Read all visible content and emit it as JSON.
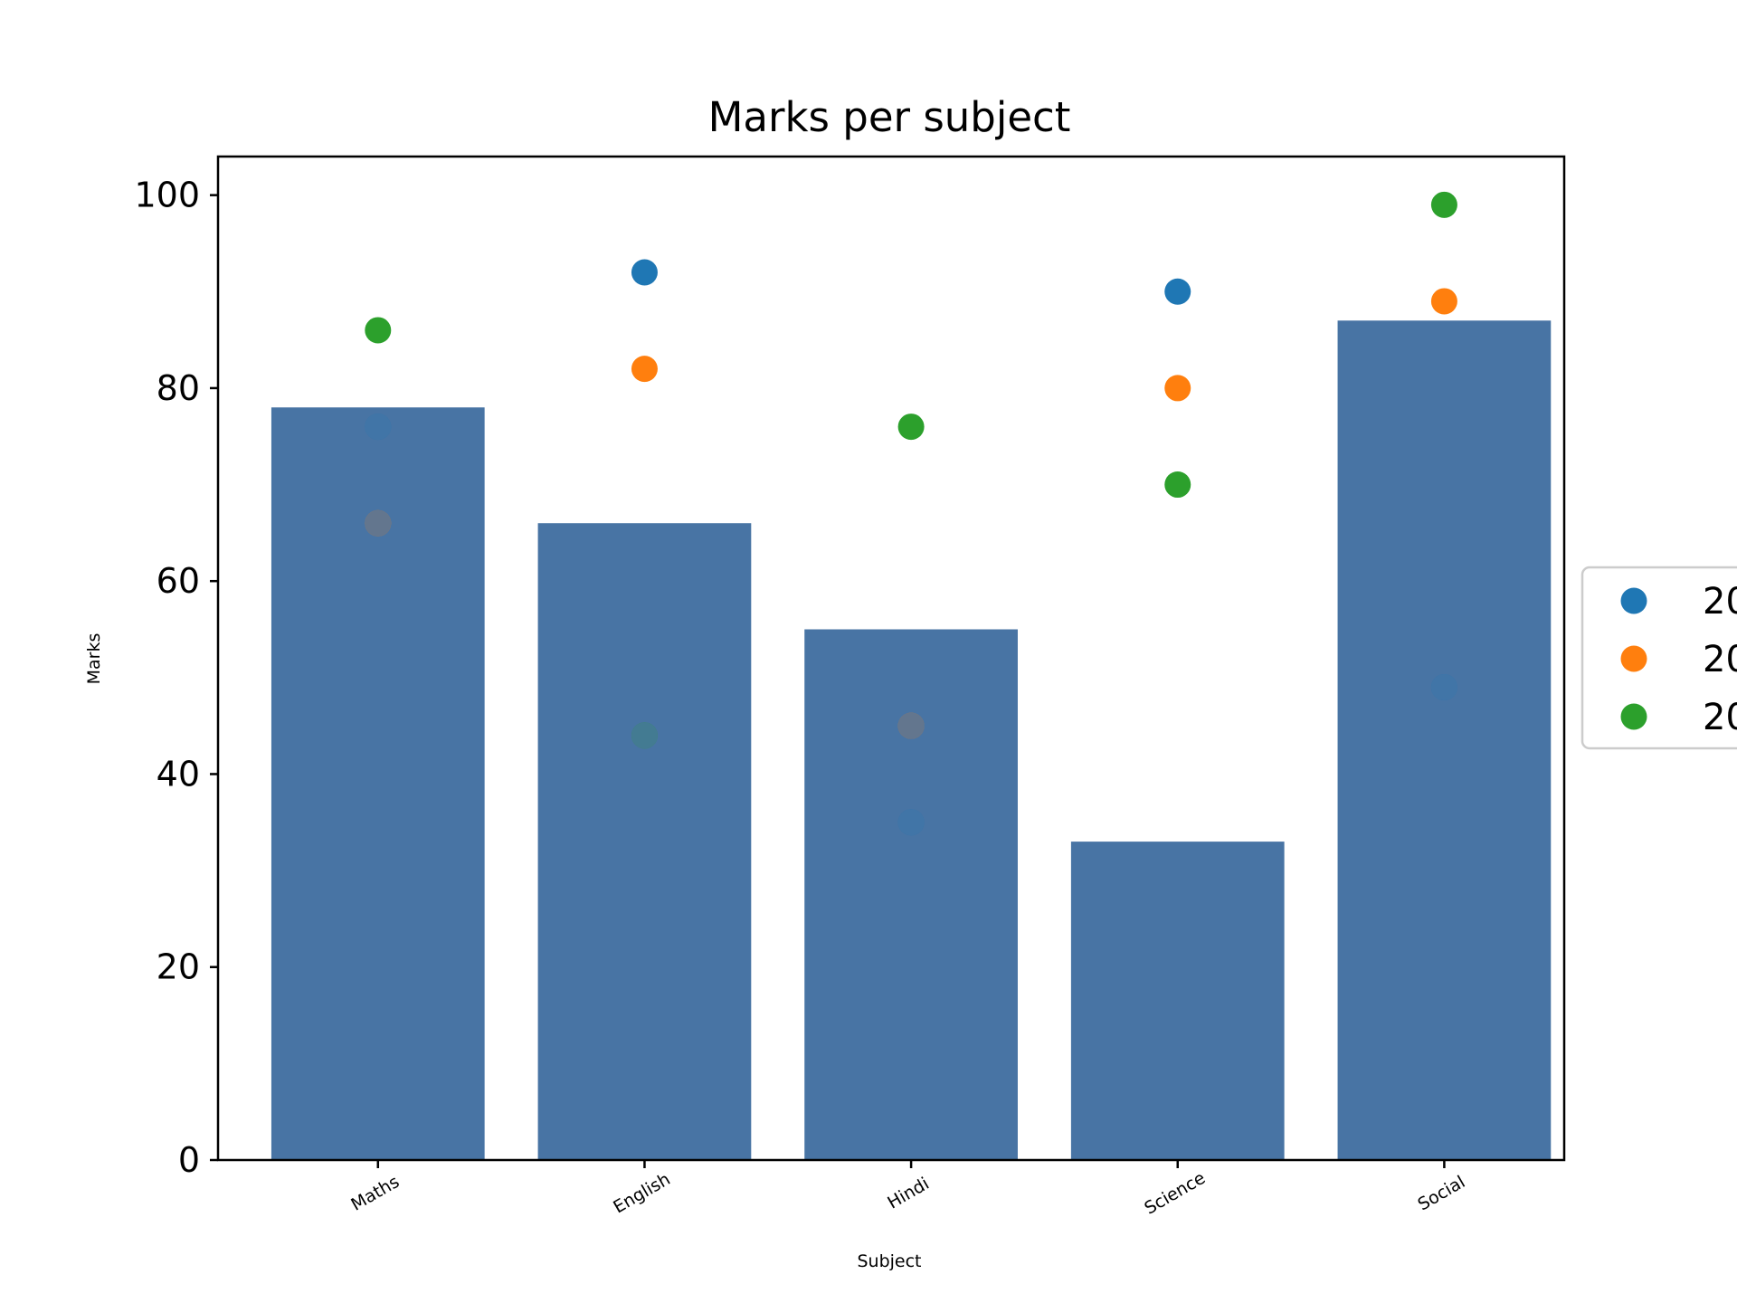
{
  "chart_data": {
    "type": "bar",
    "title": "Marks per subject",
    "xlabel": "Subject",
    "ylabel": "Marks",
    "categories": [
      "Maths",
      "English",
      "Hindi",
      "Science",
      "Social"
    ],
    "bar_values": [
      78,
      66,
      55,
      33,
      87
    ],
    "bar_color": "#4874a4",
    "ylim": [
      0,
      104
    ],
    "yticks": [
      0,
      20,
      40,
      60,
      80,
      100
    ],
    "grid": false,
    "legend_position": "right, outside plot, partially cut off",
    "scatter_series": [
      {
        "label": "20",
        "color": "#1f77b4",
        "values": [
          76,
          92,
          35,
          90,
          49
        ]
      },
      {
        "label": "20",
        "color": "#ff7f0e",
        "values": [
          66,
          82,
          45,
          80,
          89
        ]
      },
      {
        "label": "20",
        "color": "#2ca02c",
        "values": [
          86,
          44,
          76,
          70,
          99
        ]
      }
    ]
  }
}
